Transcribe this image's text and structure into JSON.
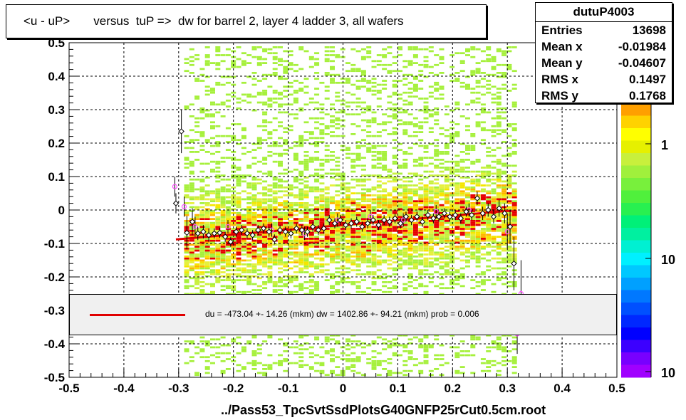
{
  "title": "<u - uP>       versus  tuP =>  dw for barrel 2, layer 4 ladder 3, all wafers",
  "footer": "../Pass53_TpcSvtSsdPlotsG40GNFP25rCut0.5cm.root",
  "stats": {
    "name": "dutuP4003",
    "rows": [
      {
        "label": "Entries",
        "value": "13698"
      },
      {
        "label": "Mean x",
        "value": "-0.01984"
      },
      {
        "label": "Mean y",
        "value": "-0.04607"
      },
      {
        "label": "RMS x",
        "value": "0.1497"
      },
      {
        "label": "RMS y",
        "value": "0.1768"
      }
    ]
  },
  "fit_legend": "du = -473.04 +- 14.26 (mkm) dw = 1402.86 +- 94.21 (mkm) prob = 0.006",
  "colors": {
    "fit_line": "#e00000",
    "frame": "#000000",
    "heat_low": "#a6f03c",
    "heat_mid": "#f5e600",
    "heat_high": "#e60000",
    "legend_bg": "#f0f0f0"
  },
  "chart_data": {
    "type": "heatmap",
    "xlim": [
      -0.5,
      0.5
    ],
    "ylim": [
      -0.5,
      0.5
    ],
    "x_ticks": [
      "-0.5",
      "-0.4",
      "-0.3",
      "-0.2",
      "-0.1",
      "0",
      "0.1",
      "0.2",
      "0.3",
      "0.4",
      "0.5"
    ],
    "y_ticks": [
      "-0.5",
      "-0.4",
      "-0.3",
      "-0.2",
      "-0.1",
      "0",
      "0.1",
      "0.2",
      "0.3",
      "0.4",
      "0.5"
    ],
    "grid": true,
    "colorbar_ticks": [
      "1",
      "10",
      "10"
    ],
    "fit_line": {
      "x": [
        -0.305,
        0.305
      ],
      "y": [
        -0.088,
        -0.002
      ]
    },
    "profile_points": [
      {
        "x": -0.305,
        "y": 0.02,
        "err": 0.03
      },
      {
        "x": -0.295,
        "y": 0.235,
        "err": 0.065
      },
      {
        "x": -0.285,
        "y": -0.068,
        "err": 0.05
      },
      {
        "x": -0.275,
        "y": -0.035,
        "err": 0.04
      },
      {
        "x": -0.265,
        "y": -0.07,
        "err": 0.02
      },
      {
        "x": -0.255,
        "y": -0.065,
        "err": 0.02
      },
      {
        "x": -0.245,
        "y": -0.075,
        "err": 0.02
      },
      {
        "x": -0.235,
        "y": -0.07,
        "err": 0.015
      },
      {
        "x": -0.225,
        "y": -0.068,
        "err": 0.015
      },
      {
        "x": -0.215,
        "y": -0.08,
        "err": 0.015
      },
      {
        "x": -0.205,
        "y": -0.095,
        "err": 0.015
      },
      {
        "x": -0.195,
        "y": -0.065,
        "err": 0.015
      },
      {
        "x": -0.185,
        "y": -0.06,
        "err": 0.015
      },
      {
        "x": -0.175,
        "y": -0.07,
        "err": 0.015
      },
      {
        "x": -0.165,
        "y": -0.075,
        "err": 0.015
      },
      {
        "x": -0.155,
        "y": -0.06,
        "err": 0.015
      },
      {
        "x": -0.145,
        "y": -0.055,
        "err": 0.015
      },
      {
        "x": -0.135,
        "y": -0.065,
        "err": 0.015
      },
      {
        "x": -0.125,
        "y": -0.088,
        "err": 0.015
      },
      {
        "x": -0.115,
        "y": -0.06,
        "err": 0.015
      },
      {
        "x": -0.105,
        "y": -0.065,
        "err": 0.015
      },
      {
        "x": -0.095,
        "y": -0.07,
        "err": 0.015
      },
      {
        "x": -0.085,
        "y": -0.055,
        "err": 0.015
      },
      {
        "x": -0.075,
        "y": -0.06,
        "err": 0.015
      },
      {
        "x": -0.065,
        "y": -0.065,
        "err": 0.015
      },
      {
        "x": -0.055,
        "y": -0.05,
        "err": 0.015
      },
      {
        "x": -0.045,
        "y": -0.06,
        "err": 0.015
      },
      {
        "x": -0.035,
        "y": -0.055,
        "err": 0.015
      },
      {
        "x": -0.025,
        "y": -0.03,
        "err": 0.015
      },
      {
        "x": -0.015,
        "y": -0.04,
        "err": 0.015
      },
      {
        "x": -0.005,
        "y": -0.03,
        "err": 0.015
      },
      {
        "x": 0.005,
        "y": -0.045,
        "err": 0.015
      },
      {
        "x": 0.015,
        "y": -0.04,
        "err": 0.015
      },
      {
        "x": 0.025,
        "y": -0.035,
        "err": 0.015
      },
      {
        "x": 0.035,
        "y": -0.05,
        "err": 0.015
      },
      {
        "x": 0.045,
        "y": -0.04,
        "err": 0.015
      },
      {
        "x": 0.055,
        "y": -0.03,
        "err": 0.015
      },
      {
        "x": 0.065,
        "y": -0.045,
        "err": 0.015
      },
      {
        "x": 0.075,
        "y": -0.03,
        "err": 0.015
      },
      {
        "x": 0.085,
        "y": -0.035,
        "err": 0.015
      },
      {
        "x": 0.095,
        "y": -0.025,
        "err": 0.015
      },
      {
        "x": 0.105,
        "y": -0.04,
        "err": 0.015
      },
      {
        "x": 0.115,
        "y": -0.02,
        "err": 0.015
      },
      {
        "x": 0.125,
        "y": -0.03,
        "err": 0.015
      },
      {
        "x": 0.135,
        "y": -0.02,
        "err": 0.015
      },
      {
        "x": 0.145,
        "y": -0.035,
        "err": 0.015
      },
      {
        "x": 0.155,
        "y": -0.015,
        "err": 0.015
      },
      {
        "x": 0.165,
        "y": -0.025,
        "err": 0.015
      },
      {
        "x": 0.175,
        "y": -0.02,
        "err": 0.015
      },
      {
        "x": 0.185,
        "y": -0.01,
        "err": 0.015
      },
      {
        "x": 0.195,
        "y": -0.02,
        "err": 0.015
      },
      {
        "x": 0.205,
        "y": -0.015,
        "err": 0.015
      },
      {
        "x": 0.215,
        "y": -0.025,
        "err": 0.015
      },
      {
        "x": 0.225,
        "y": -0.005,
        "err": 0.015
      },
      {
        "x": 0.235,
        "y": -0.015,
        "err": 0.015
      },
      {
        "x": 0.245,
        "y": 0.035,
        "err": 0.02
      },
      {
        "x": 0.255,
        "y": -0.01,
        "err": 0.02
      },
      {
        "x": 0.265,
        "y": 0.0,
        "err": 0.02
      },
      {
        "x": 0.275,
        "y": -0.02,
        "err": 0.02
      },
      {
        "x": 0.285,
        "y": 0.005,
        "err": 0.025
      },
      {
        "x": 0.295,
        "y": -0.01,
        "err": 0.03
      },
      {
        "x": 0.305,
        "y": -0.05,
        "err": 0.05
      },
      {
        "x": 0.312,
        "y": -0.16,
        "err": 0.08
      }
    ],
    "secondary_points": [
      {
        "x": -0.307,
        "y": 0.07,
        "err": 0.03
      },
      {
        "x": -0.29,
        "y": 0.01,
        "err": 0.03
      },
      {
        "x": -0.27,
        "y": -0.05,
        "err": 0.03
      },
      {
        "x": -0.21,
        "y": -0.05,
        "err": 0.02
      },
      {
        "x": -0.13,
        "y": -0.06,
        "err": 0.02
      },
      {
        "x": -0.07,
        "y": -0.07,
        "err": 0.02
      },
      {
        "x": -0.01,
        "y": -0.03,
        "err": 0.02
      },
      {
        "x": 0.05,
        "y": -0.02,
        "err": 0.02
      },
      {
        "x": 0.11,
        "y": -0.03,
        "err": 0.02
      },
      {
        "x": 0.17,
        "y": -0.005,
        "err": 0.02
      },
      {
        "x": 0.23,
        "y": 0.0,
        "err": 0.02
      },
      {
        "x": 0.3,
        "y": -0.065,
        "err": 0.05
      },
      {
        "x": 0.325,
        "y": -0.25,
        "err": 0.1
      },
      {
        "x": 0.318,
        "y": -0.37,
        "err": 0.06
      }
    ]
  }
}
